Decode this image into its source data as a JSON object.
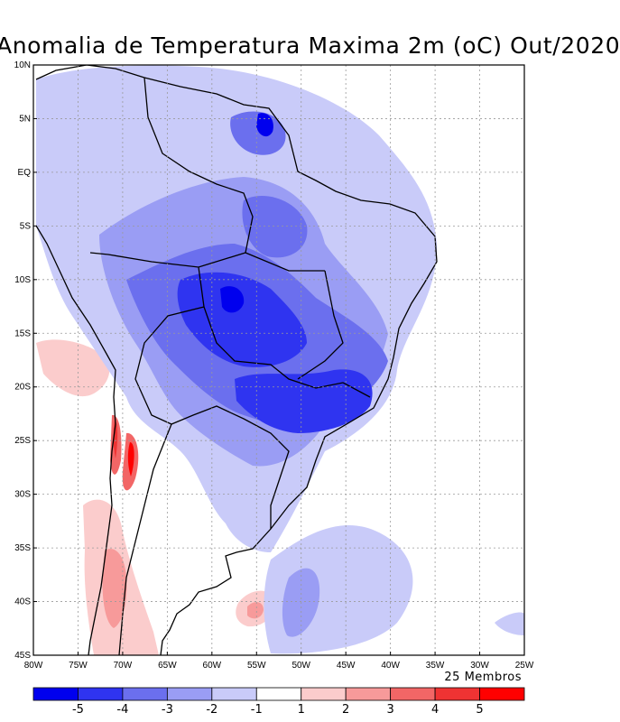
{
  "title": "Anomalia de Temperatura Maxima 2m (oC) Out/2020",
  "map": {
    "lat_labels": [
      "10N",
      "5N",
      "EQ",
      "5S",
      "10S",
      "15S",
      "20S",
      "25S",
      "30S",
      "35S",
      "40S",
      "45S"
    ],
    "lon_labels": [
      "80W",
      "75W",
      "70W",
      "65W",
      "60W",
      "55W",
      "50W",
      "45W",
      "40W",
      "35W",
      "30W",
      "25W"
    ],
    "members_note": "25 Membros"
  },
  "colorbar": {
    "labels": [
      "-5",
      "-4",
      "-3",
      "-2",
      "-1",
      "1",
      "2",
      "3",
      "4",
      "5"
    ],
    "colors": [
      "#0000ee",
      "#2f34f0",
      "#6b6fee",
      "#9a9df4",
      "#c9cbf9",
      "#ffffff",
      "#fbcccc",
      "#f79a9a",
      "#f26666",
      "#ef3333",
      "#ff0000"
    ]
  },
  "colors": {
    "land_line": "#000000",
    "grid": "#9a9a9a"
  }
}
